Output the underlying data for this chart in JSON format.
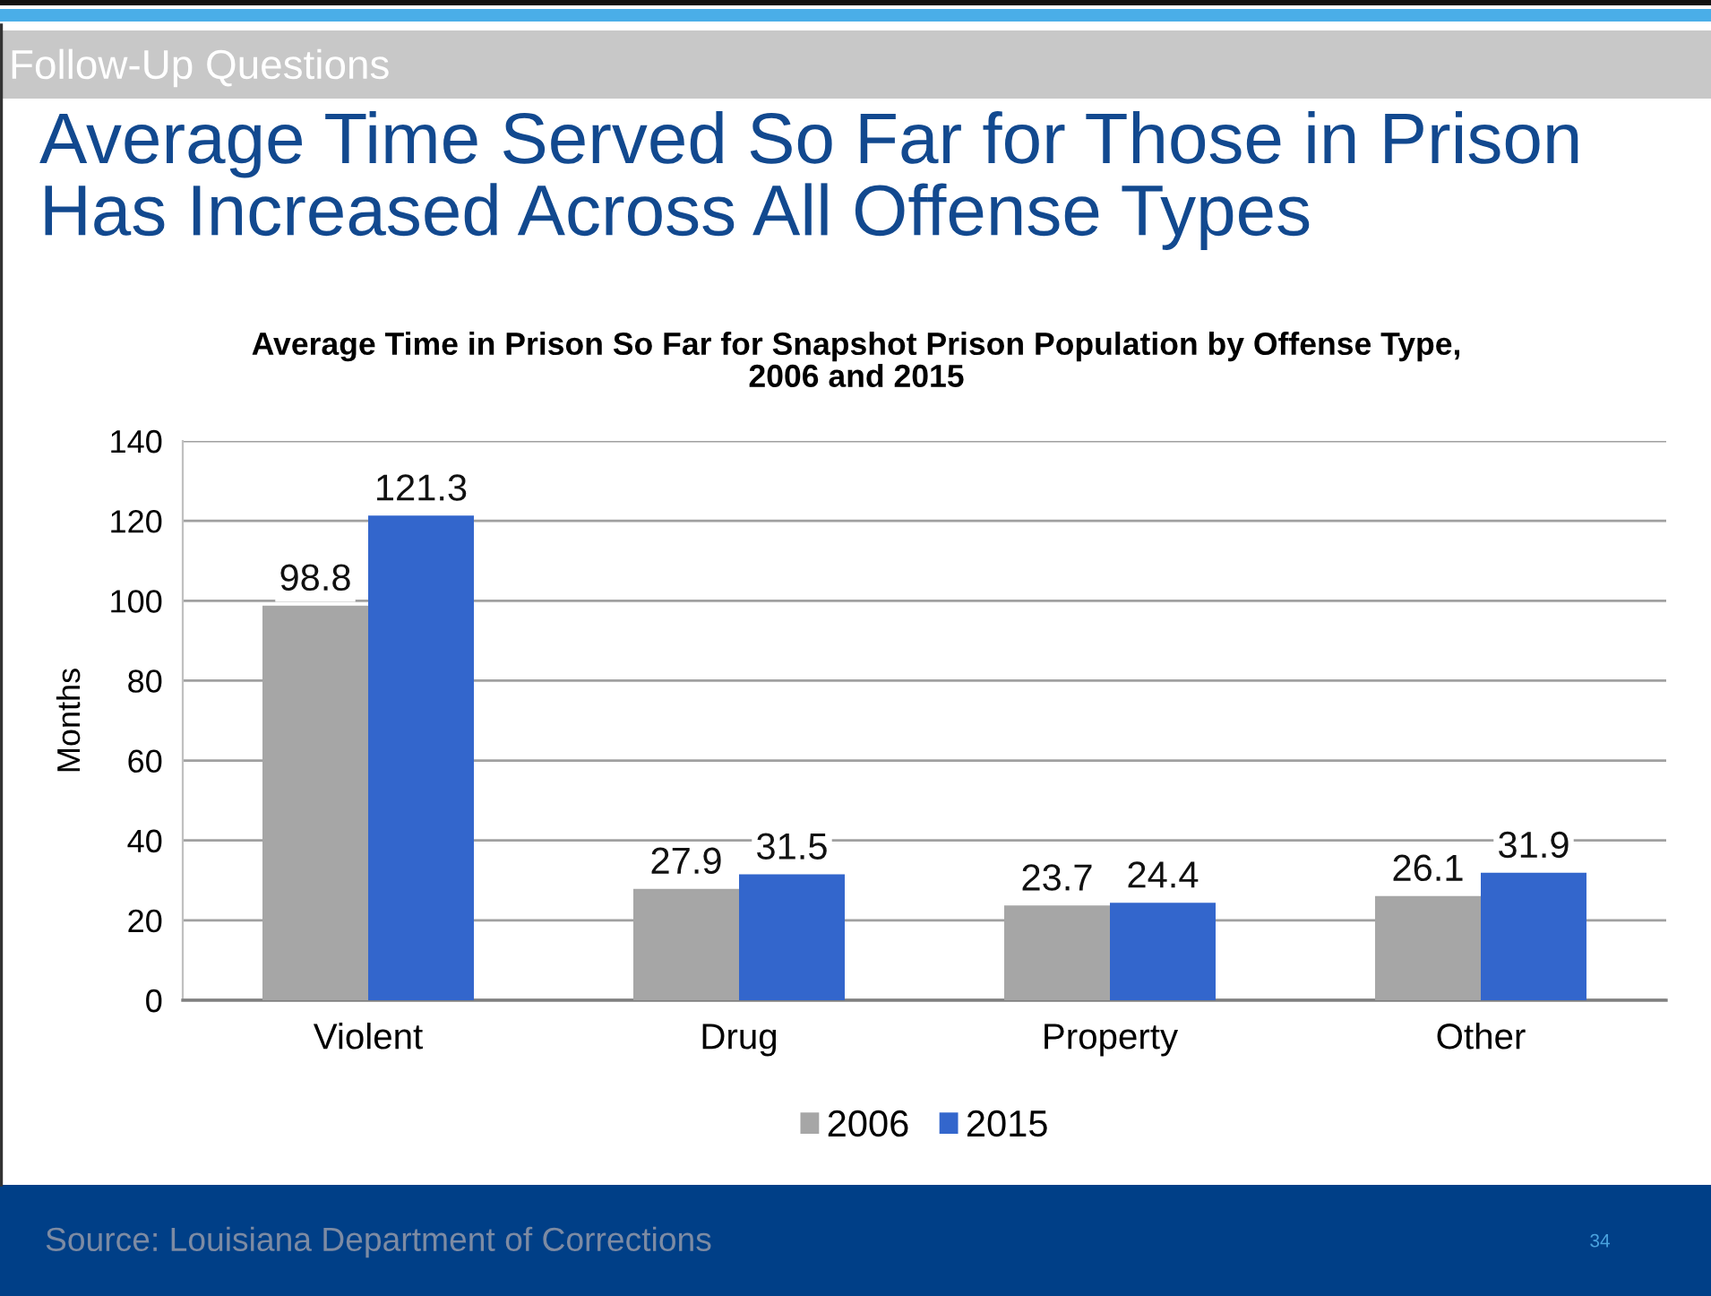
{
  "chart_data": {
    "type": "bar",
    "title": "Average Time Served So Far for Those in Prison\nHas Increased Across All Offense Types",
    "subtitle": "Average Time in Prison So Far for Snapshot Prison Population by Offense Type,\n2006 and 2015",
    "ylabel": "Months",
    "categories": [
      "Violent",
      "Drug",
      "Property",
      "Other"
    ],
    "series": [
      {
        "name": "2006",
        "color": "#a6a6a6",
        "values": [
          98.8,
          27.9,
          23.7,
          26.1
        ]
      },
      {
        "name": "2015",
        "color": "#3366cc",
        "values": [
          121.3,
          31.5,
          24.4,
          31.9
        ]
      }
    ],
    "ylim": [
      0,
      140
    ],
    "yticks": [
      0,
      20,
      40,
      60,
      80,
      100,
      120,
      140
    ],
    "grid": "y",
    "legend": "bottom",
    "data_labels": true,
    "annotations": [
      "Follow-Up Questions",
      "Source: Louisiana Department of Corrections",
      "34"
    ]
  }
}
